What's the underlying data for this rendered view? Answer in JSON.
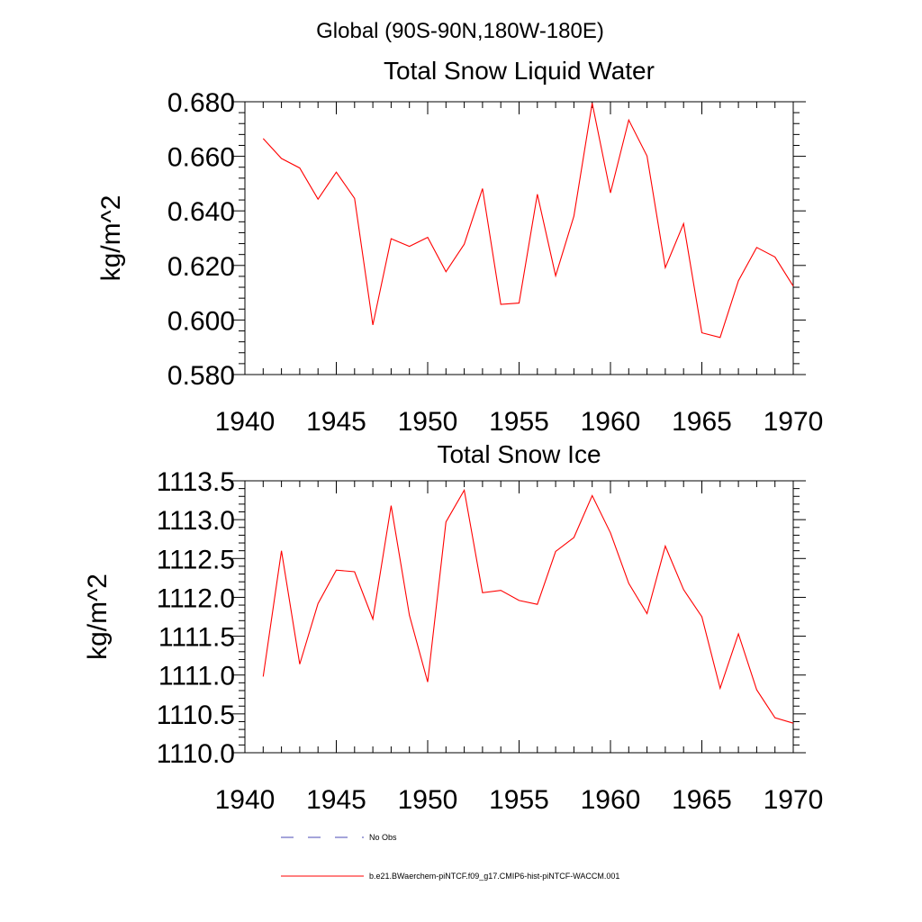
{
  "header": {
    "region": "Global (90S-90N,180W-180E)"
  },
  "chart_data": [
    {
      "type": "line",
      "title": "Total Snow Liquid Water",
      "xlabel": "",
      "ylabel": "kg/m^2",
      "xlim": [
        1940,
        1970
      ],
      "ylim": [
        0.58,
        0.68
      ],
      "x_ticks": [
        "1940",
        "1945",
        "1950",
        "1955",
        "1960",
        "1965",
        "1970"
      ],
      "y_ticks": [
        "0.580",
        "0.600",
        "0.620",
        "0.640",
        "0.660",
        "0.680"
      ],
      "x": [
        1941,
        1942,
        1943,
        1944,
        1945,
        1946,
        1947,
        1948,
        1949,
        1950,
        1951,
        1952,
        1953,
        1954,
        1955,
        1956,
        1957,
        1958,
        1959,
        1960,
        1961,
        1962,
        1963,
        1964,
        1965,
        1966,
        1967,
        1968,
        1969,
        1970
      ],
      "series": [
        {
          "name": "b.e21.BWaerchem-piNTCF.f09_g17.CMIP6-hist-piNTCF-WACCM.001",
          "color": "#ff0000",
          "values": [
            0.6665,
            0.6592,
            0.6557,
            0.6443,
            0.6542,
            0.6446,
            0.5982,
            0.6298,
            0.627,
            0.6303,
            0.6177,
            0.6278,
            0.6482,
            0.6057,
            0.6062,
            0.6461,
            0.6162,
            0.6381,
            0.6795,
            0.6466,
            0.6733,
            0.6601,
            0.6192,
            0.6353,
            0.5953,
            0.5936,
            0.6144,
            0.6266,
            0.6231,
            0.6124
          ]
        }
      ],
      "grid": false
    },
    {
      "type": "line",
      "title": "Total Snow Ice",
      "xlabel": "",
      "ylabel": "kg/m^2",
      "xlim": [
        1940,
        1970
      ],
      "ylim": [
        1110.0,
        1113.5
      ],
      "x_ticks": [
        "1940",
        "1945",
        "1950",
        "1955",
        "1960",
        "1965",
        "1970"
      ],
      "y_ticks": [
        "1110.0",
        "1110.5",
        "1111.0",
        "1111.5",
        "1112.0",
        "1112.5",
        "1113.0",
        "1113.5"
      ],
      "x": [
        1941,
        1942,
        1943,
        1944,
        1945,
        1946,
        1947,
        1948,
        1949,
        1950,
        1951,
        1952,
        1953,
        1954,
        1955,
        1956,
        1957,
        1958,
        1959,
        1960,
        1961,
        1962,
        1963,
        1964,
        1965,
        1966,
        1967,
        1968,
        1969,
        1970
      ],
      "series": [
        {
          "name": "b.e21.BWaerchem-piNTCF.f09_g17.CMIP6-hist-piNTCF-WACCM.001",
          "color": "#ff0000",
          "values": [
            1110.98,
            1112.6,
            1111.14,
            1111.92,
            1112.35,
            1112.33,
            1111.72,
            1113.18,
            1111.77,
            1110.91,
            1112.97,
            1113.38,
            1112.06,
            1112.09,
            1111.96,
            1111.91,
            1112.59,
            1112.77,
            1113.31,
            1112.83,
            1112.18,
            1111.79,
            1112.66,
            1112.1,
            1111.75,
            1110.83,
            1111.53,
            1110.81,
            1110.45,
            1110.38
          ]
        }
      ],
      "grid": false
    }
  ],
  "legend": [
    {
      "label": "No Obs",
      "color": "#4b4bb4",
      "style": "dashed"
    },
    {
      "label": "b.e21.BWaerchem-piNTCF.f09_g17.CMIP6-hist-piNTCF-WACCM.001",
      "color": "#ff0000",
      "style": "solid"
    }
  ]
}
